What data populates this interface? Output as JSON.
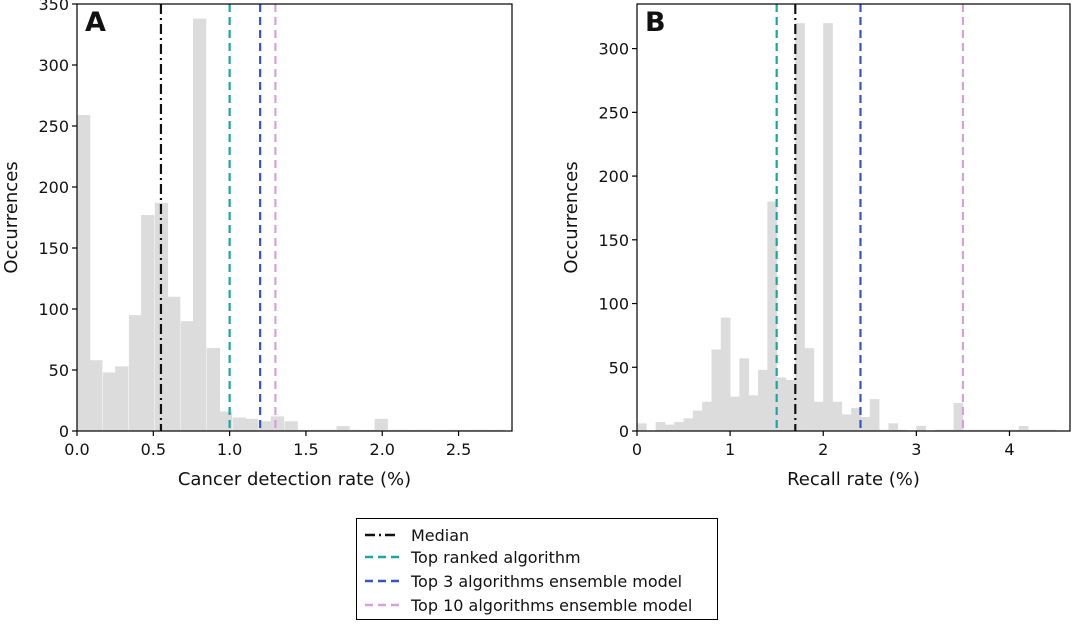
{
  "chart_data": [
    {
      "type": "histogram",
      "panel_label": "A",
      "xlabel": "Cancer detection rate (%)",
      "ylabel": "Occurrences",
      "xlim": [
        0,
        2.85
      ],
      "ylim": [
        0,
        350
      ],
      "xticks": [
        "0.0",
        "0.5",
        "1.0",
        "1.5",
        "2.0",
        "2.5"
      ],
      "yticks": [
        "0",
        "50",
        "100",
        "150",
        "200",
        "250",
        "300",
        "350"
      ],
      "bin_width": 0.0848,
      "bins": [
        {
          "x": 0.0,
          "y": 259
        },
        {
          "x": 0.08,
          "y": 58
        },
        {
          "x": 0.17,
          "y": 48
        },
        {
          "x": 0.25,
          "y": 53
        },
        {
          "x": 0.34,
          "y": 95
        },
        {
          "x": 0.42,
          "y": 177
        },
        {
          "x": 0.51,
          "y": 187
        },
        {
          "x": 0.59,
          "y": 110
        },
        {
          "x": 0.68,
          "y": 90
        },
        {
          "x": 0.76,
          "y": 338
        },
        {
          "x": 0.85,
          "y": 68
        },
        {
          "x": 0.93,
          "y": 16
        },
        {
          "x": 1.02,
          "y": 11
        },
        {
          "x": 1.1,
          "y": 10
        },
        {
          "x": 1.19,
          "y": 8
        },
        {
          "x": 1.27,
          "y": 12
        },
        {
          "x": 1.36,
          "y": 8
        },
        {
          "x": 1.44,
          "y": 1
        },
        {
          "x": 1.53,
          "y": 1
        },
        {
          "x": 1.61,
          "y": 1
        },
        {
          "x": 1.7,
          "y": 4
        },
        {
          "x": 1.78,
          "y": 1
        },
        {
          "x": 1.87,
          "y": 1
        },
        {
          "x": 1.95,
          "y": 10
        },
        {
          "x": 2.04,
          "y": 1
        },
        {
          "x": 2.12,
          "y": 1
        },
        {
          "x": 2.21,
          "y": 1
        },
        {
          "x": 2.29,
          "y": 1
        },
        {
          "x": 2.38,
          "y": 1
        },
        {
          "x": 2.46,
          "y": 1
        },
        {
          "x": 2.55,
          "y": 1
        },
        {
          "x": 2.63,
          "y": 1
        },
        {
          "x": 2.72,
          "y": 1
        }
      ],
      "vlines": [
        {
          "key": "median",
          "x": 0.55
        },
        {
          "key": "top_ranked",
          "x": 1.0
        },
        {
          "key": "top3",
          "x": 1.2
        },
        {
          "key": "top10",
          "x": 1.3
        }
      ]
    },
    {
      "type": "histogram",
      "panel_label": "B",
      "xlabel": "Recall rate (%)",
      "ylabel": "Occurrences",
      "xlim": [
        0,
        4.65
      ],
      "ylim": [
        0,
        335
      ],
      "xticks": [
        "0",
        "1",
        "2",
        "3",
        "4"
      ],
      "yticks": [
        "0",
        "50",
        "100",
        "150",
        "200",
        "250",
        "300"
      ],
      "bin_width": 0.1,
      "bins": [
        {
          "x": 0.0,
          "y": 6
        },
        {
          "x": 0.2,
          "y": 7
        },
        {
          "x": 0.3,
          "y": 5
        },
        {
          "x": 0.4,
          "y": 7
        },
        {
          "x": 0.5,
          "y": 10
        },
        {
          "x": 0.6,
          "y": 16
        },
        {
          "x": 0.7,
          "y": 23
        },
        {
          "x": 0.8,
          "y": 64
        },
        {
          "x": 0.9,
          "y": 89
        },
        {
          "x": 1.0,
          "y": 27
        },
        {
          "x": 1.1,
          "y": 57
        },
        {
          "x": 1.2,
          "y": 28
        },
        {
          "x": 1.3,
          "y": 48
        },
        {
          "x": 1.4,
          "y": 180
        },
        {
          "x": 1.5,
          "y": 42
        },
        {
          "x": 1.6,
          "y": 40
        },
        {
          "x": 1.7,
          "y": 320
        },
        {
          "x": 1.8,
          "y": 65
        },
        {
          "x": 1.9,
          "y": 23
        },
        {
          "x": 2.0,
          "y": 320
        },
        {
          "x": 2.1,
          "y": 23
        },
        {
          "x": 2.2,
          "y": 13
        },
        {
          "x": 2.3,
          "y": 18
        },
        {
          "x": 2.4,
          "y": 11
        },
        {
          "x": 2.5,
          "y": 25
        },
        {
          "x": 2.6,
          "y": 1
        },
        {
          "x": 2.7,
          "y": 6
        },
        {
          "x": 2.8,
          "y": 1
        },
        {
          "x": 3.0,
          "y": 4
        },
        {
          "x": 3.2,
          "y": 1
        },
        {
          "x": 3.3,
          "y": 1
        },
        {
          "x": 3.4,
          "y": 22
        },
        {
          "x": 3.5,
          "y": 1
        },
        {
          "x": 3.6,
          "y": 1
        },
        {
          "x": 3.7,
          "y": 1
        },
        {
          "x": 3.8,
          "y": 1
        },
        {
          "x": 3.9,
          "y": 1
        },
        {
          "x": 4.0,
          "y": 1
        },
        {
          "x": 4.1,
          "y": 4
        },
        {
          "x": 4.2,
          "y": 1
        },
        {
          "x": 4.3,
          "y": 1
        },
        {
          "x": 4.4,
          "y": 1
        }
      ],
      "vlines": [
        {
          "key": "median",
          "x": 1.7
        },
        {
          "key": "top_ranked",
          "x": 1.5
        },
        {
          "key": "top3",
          "x": 2.4
        },
        {
          "key": "top10",
          "x": 3.5
        }
      ]
    }
  ],
  "legend": {
    "placement": "bottom-center",
    "items": [
      {
        "key": "median",
        "label": "Median",
        "color": "#111111",
        "dash": "10,4,2,4"
      },
      {
        "key": "top_ranked",
        "label": "Top ranked algorithm",
        "color": "#1aa6a6",
        "dash": "8,5"
      },
      {
        "key": "top3",
        "label": "Top 3 algorithms ensemble model",
        "color": "#3258c0",
        "dash": "8,5"
      },
      {
        "key": "top10",
        "label": "Top 10 algorithms ensemble model",
        "color": "#d7a0dc",
        "dash": "8,5"
      }
    ]
  },
  "style": {
    "bar_color": "#dcdcdc",
    "axis_color": "#000000"
  }
}
